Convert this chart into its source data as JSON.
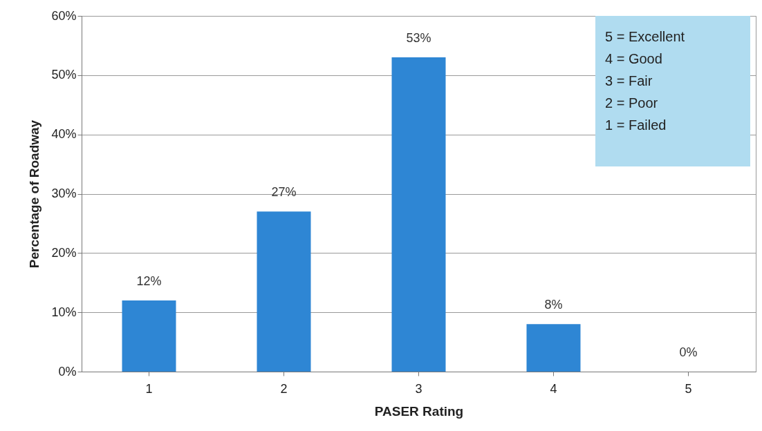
{
  "chart_data": {
    "type": "bar",
    "xlabel": "PASER Rating",
    "ylabel": "Percentage of Roadway",
    "categories": [
      "1",
      "2",
      "3",
      "4",
      "5"
    ],
    "values": [
      12,
      27,
      53,
      8,
      0
    ],
    "value_labels": [
      "12%",
      "27%",
      "53%",
      "8%",
      "0%"
    ],
    "color": "#2e86d4",
    "ylim": [
      0,
      60
    ],
    "yticks": [
      {
        "value": 0,
        "label": "0%"
      },
      {
        "value": 10,
        "label": "10%"
      },
      {
        "value": 20,
        "label": "20%"
      },
      {
        "value": 30,
        "label": "30%"
      },
      {
        "value": 40,
        "label": "40%"
      },
      {
        "value": 50,
        "label": "50%"
      },
      {
        "value": 60,
        "label": "60%"
      }
    ],
    "grid": "y",
    "annotations": [
      "5 = Excellent",
      "4 = Good",
      "3 = Fair",
      "2 = Poor",
      "1 = Failed"
    ]
  }
}
